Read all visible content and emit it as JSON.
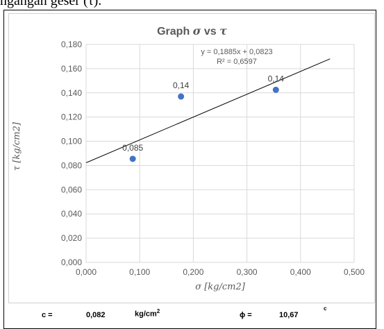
{
  "caption_top": "ngangan geser (τ).",
  "chart_data": {
    "type": "scatter",
    "title_prefix": "Graph ",
    "title_sigma": "σ",
    "title_mid": " vs ",
    "title_tau": "τ",
    "xlabel": "σ [kg/cm2]",
    "ylabel": "τ [kg/cm2]",
    "xlim": [
      0,
      0.5
    ],
    "ylim": [
      0,
      0.18
    ],
    "xticks": [
      "0,000",
      "0,100",
      "0,200",
      "0,300",
      "0,400",
      "0,500"
    ],
    "yticks": [
      "0,000",
      "0,020",
      "0,040",
      "0,060",
      "0,080",
      "0,100",
      "0,120",
      "0,140",
      "0,160",
      "0,180"
    ],
    "points": [
      {
        "x": 0.087,
        "y": 0.0855,
        "label": "0,085"
      },
      {
        "x": 0.177,
        "y": 0.137,
        "label": "0,14"
      },
      {
        "x": 0.354,
        "y": 0.1425,
        "label": "0,14"
      }
    ],
    "trendline": {
      "slope": 0.1885,
      "intercept": 0.0823,
      "x_end": 0.455
    },
    "equation": "y = 0,1885x + 0,0823",
    "r_squared": "R² = 0,6597",
    "grid": true,
    "point_color": "#4472c4"
  },
  "footer": {
    "c_label": "c =",
    "c_value": "0,082",
    "c_unit": "kg/cm",
    "c_unit_exp": "2",
    "phi_label": "ϕ =",
    "phi_value": "10,67",
    "phi_unit": "c"
  }
}
